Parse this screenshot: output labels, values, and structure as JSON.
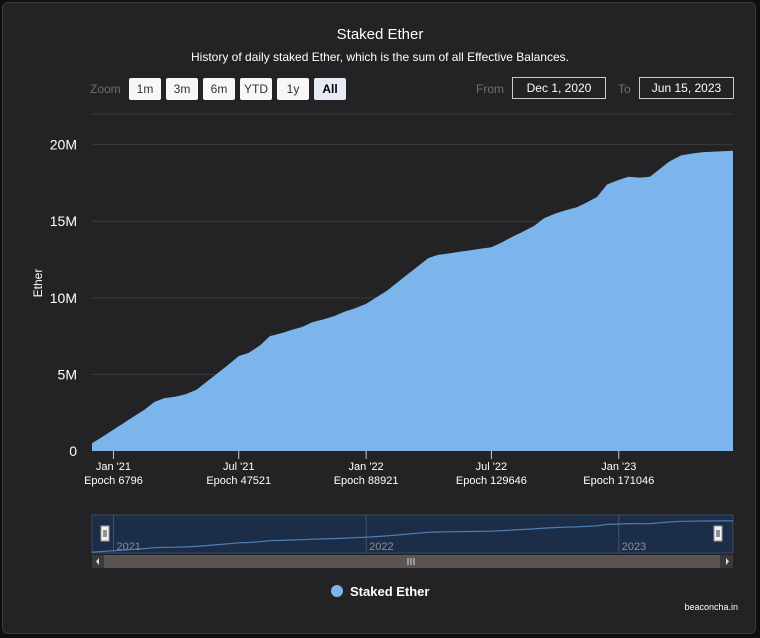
{
  "chart": {
    "title": "Staked Ether",
    "subtitle": "History of daily staked Ether, which is the sum of all Effective Balances.",
    "credit": "beaconcha.in"
  },
  "range_selector": {
    "zoom_label": "Zoom",
    "buttons": [
      {
        "label": "1m",
        "active": false
      },
      {
        "label": "3m",
        "active": false
      },
      {
        "label": "6m",
        "active": false
      },
      {
        "label": "YTD",
        "active": false
      },
      {
        "label": "1y",
        "active": false
      },
      {
        "label": "All",
        "active": true
      }
    ],
    "from_label": "From",
    "from_value": "Dec 1, 2020",
    "to_label": "To",
    "to_value": "Jun 15, 2023"
  },
  "colors": {
    "area": "#7cb5ec",
    "background": "#232224",
    "grid": "#3c3b3e",
    "text": "#ffffff"
  },
  "chart_data": {
    "type": "area",
    "title": "Staked Ether",
    "ylabel": "Ether",
    "xlabel": "",
    "ylim": [
      0,
      22000000
    ],
    "y_ticks": [
      {
        "value": 0,
        "label": "0"
      },
      {
        "value": 5000000,
        "label": "5M"
      },
      {
        "value": 10000000,
        "label": "10M"
      },
      {
        "value": 15000000,
        "label": "15M"
      },
      {
        "value": 20000000,
        "label": "20M"
      }
    ],
    "x_ticks": [
      {
        "date": "2021-01-01",
        "label": "Jan '21",
        "sublabel": "Epoch 6796"
      },
      {
        "date": "2021-07-01",
        "label": "Jul '21",
        "sublabel": "Epoch 47521"
      },
      {
        "date": "2022-01-01",
        "label": "Jan '22",
        "sublabel": "Epoch 88921"
      },
      {
        "date": "2022-07-01",
        "label": "Jul '22",
        "sublabel": "Epoch 129646"
      },
      {
        "date": "2023-01-01",
        "label": "Jan '23",
        "sublabel": "Epoch 171046"
      }
    ],
    "x_range": [
      "2020-12-01",
      "2023-06-15"
    ],
    "series": [
      {
        "name": "Staked Ether",
        "points": [
          [
            "2020-12-01",
            500000
          ],
          [
            "2020-12-15",
            900000
          ],
          [
            "2021-01-01",
            1400000
          ],
          [
            "2021-01-15",
            1800000
          ],
          [
            "2021-02-01",
            2300000
          ],
          [
            "2021-02-15",
            2700000
          ],
          [
            "2021-03-01",
            3200000
          ],
          [
            "2021-03-15",
            3450000
          ],
          [
            "2021-04-01",
            3550000
          ],
          [
            "2021-04-15",
            3700000
          ],
          [
            "2021-05-01",
            4000000
          ],
          [
            "2021-05-15",
            4500000
          ],
          [
            "2021-06-01",
            5100000
          ],
          [
            "2021-06-15",
            5600000
          ],
          [
            "2021-07-01",
            6200000
          ],
          [
            "2021-07-15",
            6400000
          ],
          [
            "2021-08-01",
            6900000
          ],
          [
            "2021-08-15",
            7500000
          ],
          [
            "2021-09-01",
            7700000
          ],
          [
            "2021-09-15",
            7900000
          ],
          [
            "2021-10-01",
            8100000
          ],
          [
            "2021-10-15",
            8400000
          ],
          [
            "2021-11-01",
            8600000
          ],
          [
            "2021-11-15",
            8800000
          ],
          [
            "2021-12-01",
            9100000
          ],
          [
            "2021-12-15",
            9300000
          ],
          [
            "2022-01-01",
            9600000
          ],
          [
            "2022-01-15",
            10000000
          ],
          [
            "2022-02-01",
            10500000
          ],
          [
            "2022-02-15",
            11000000
          ],
          [
            "2022-03-01",
            11500000
          ],
          [
            "2022-03-15",
            12000000
          ],
          [
            "2022-04-01",
            12600000
          ],
          [
            "2022-04-15",
            12800000
          ],
          [
            "2022-05-01",
            12900000
          ],
          [
            "2022-05-15",
            13000000
          ],
          [
            "2022-06-01",
            13100000
          ],
          [
            "2022-06-15",
            13200000
          ],
          [
            "2022-07-01",
            13300000
          ],
          [
            "2022-07-15",
            13600000
          ],
          [
            "2022-08-01",
            14000000
          ],
          [
            "2022-08-15",
            14300000
          ],
          [
            "2022-09-01",
            14700000
          ],
          [
            "2022-09-15",
            15200000
          ],
          [
            "2022-10-01",
            15500000
          ],
          [
            "2022-10-15",
            15700000
          ],
          [
            "2022-11-01",
            15900000
          ],
          [
            "2022-11-15",
            16200000
          ],
          [
            "2022-12-01",
            16600000
          ],
          [
            "2022-12-15",
            17400000
          ],
          [
            "2023-01-01",
            17700000
          ],
          [
            "2023-01-15",
            17900000
          ],
          [
            "2023-02-01",
            17850000
          ],
          [
            "2023-02-15",
            17900000
          ],
          [
            "2023-03-01",
            18400000
          ],
          [
            "2023-03-15",
            18900000
          ],
          [
            "2023-04-01",
            19300000
          ],
          [
            "2023-04-15",
            19400000
          ],
          [
            "2023-05-01",
            19500000
          ],
          [
            "2023-06-15",
            19600000
          ]
        ]
      }
    ],
    "navigator": {
      "year_labels": [
        {
          "date": "2021-01-01",
          "label": "2021"
        },
        {
          "date": "2022-01-01",
          "label": "2022"
        },
        {
          "date": "2023-01-01",
          "label": "2023"
        }
      ]
    },
    "legend": {
      "placement": "bottom-center"
    },
    "grid": true
  }
}
